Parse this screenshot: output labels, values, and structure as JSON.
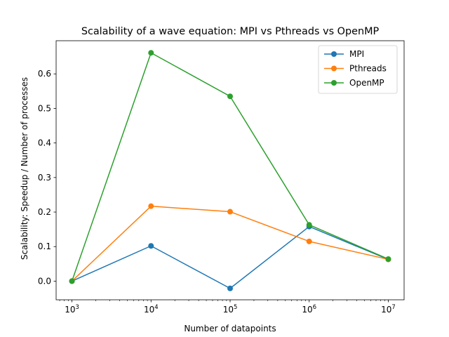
{
  "chart_data": {
    "type": "line",
    "title": "Scalability of a wave equation: MPI vs Pthreads vs OpenMP",
    "xlabel": "Number of datapoints",
    "ylabel": "Scalability: Speedup / Number of processes",
    "xscale": "log",
    "x": [
      1000,
      10000,
      100000,
      1000000,
      10000000
    ],
    "x_tick_labels": [
      {
        "base": "10",
        "exp": "3"
      },
      {
        "base": "10",
        "exp": "4"
      },
      {
        "base": "10",
        "exp": "5"
      },
      {
        "base": "10",
        "exp": "6"
      },
      {
        "base": "10",
        "exp": "7"
      }
    ],
    "ylim": [
      -0.054,
      0.696
    ],
    "y_ticks": [
      0.0,
      0.1,
      0.2,
      0.3,
      0.4,
      0.5,
      0.6
    ],
    "y_tick_labels": [
      "0.0",
      "0.1",
      "0.2",
      "0.3",
      "0.4",
      "0.5",
      "0.6"
    ],
    "grid": false,
    "legend_position": "upper right",
    "series": [
      {
        "name": "MPI",
        "color": "#1f77b4",
        "values": [
          0.0,
          0.102,
          -0.021,
          0.158,
          0.063
        ]
      },
      {
        "name": "Pthreads",
        "color": "#ff7f0e",
        "values": [
          0.0,
          0.217,
          0.201,
          0.115,
          0.063
        ]
      },
      {
        "name": "OpenMP",
        "color": "#2ca02c",
        "values": [
          0.0,
          0.661,
          0.535,
          0.163,
          0.064
        ]
      }
    ]
  }
}
